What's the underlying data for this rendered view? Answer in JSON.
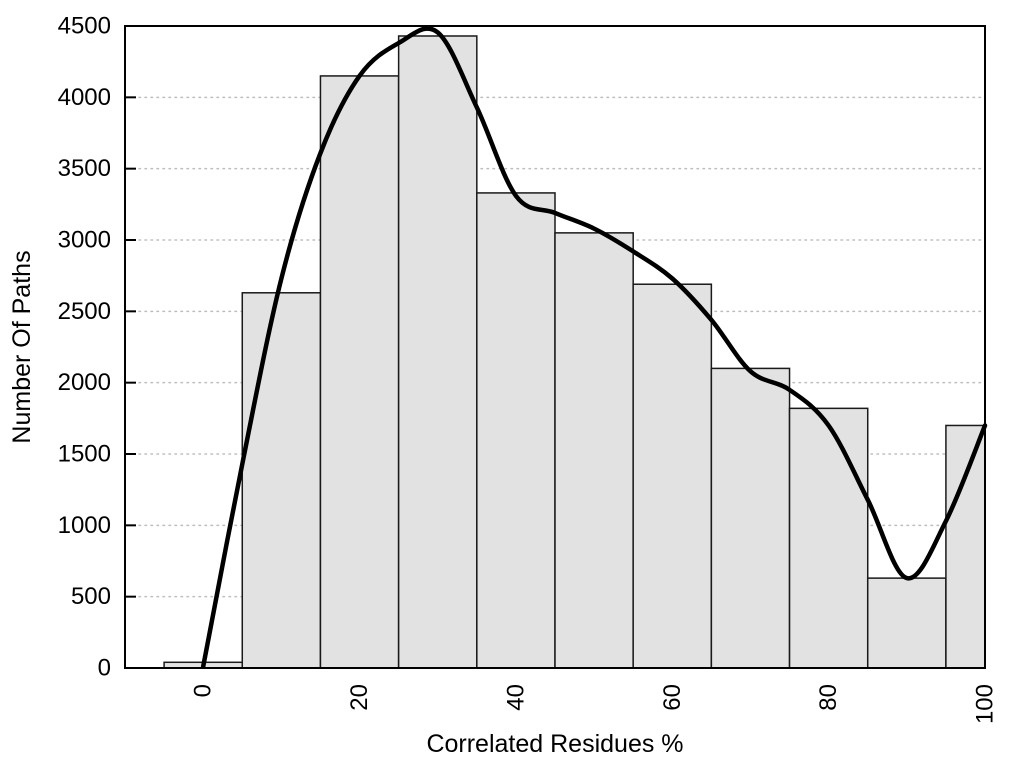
{
  "chart_data": {
    "type": "bar",
    "subtype": "histogram-with-smooth-curve",
    "title": "",
    "xlabel": "Correlated Residues %",
    "ylabel": "Number Of Paths",
    "xlim": [
      -10,
      100
    ],
    "ylim": [
      0,
      4500
    ],
    "x_tick_values": [
      0,
      20,
      40,
      60,
      80,
      100
    ],
    "x_tick_labels": [
      "0",
      "20",
      "40",
      "60",
      "80",
      "100"
    ],
    "x_tick_rotation_deg": -90,
    "y_tick_values": [
      0,
      500,
      1000,
      1500,
      2000,
      2500,
      3000,
      3500,
      4000,
      4500
    ],
    "y_tick_labels": [
      "0",
      "500",
      "1000",
      "1500",
      "2000",
      "2500",
      "3000",
      "3500",
      "4000",
      "4500"
    ],
    "grid": "horizontal-dotted",
    "legend_position": "none",
    "bins": [
      {
        "x0": -5,
        "x1": 5,
        "count": 40
      },
      {
        "x0": 5,
        "x1": 15,
        "count": 2630
      },
      {
        "x0": 15,
        "x1": 25,
        "count": 4150
      },
      {
        "x0": 25,
        "x1": 35,
        "count": 4430
      },
      {
        "x0": 35,
        "x1": 45,
        "count": 3330
      },
      {
        "x0": 45,
        "x1": 55,
        "count": 3050
      },
      {
        "x0": 55,
        "x1": 65,
        "count": 2690
      },
      {
        "x0": 65,
        "x1": 75,
        "count": 2100
      },
      {
        "x0": 75,
        "x1": 85,
        "count": 1820
      },
      {
        "x0": 85,
        "x1": 95,
        "count": 630
      },
      {
        "x0": 95,
        "x1": 100,
        "count": 1700
      }
    ],
    "smooth_curve_points": [
      [
        0,
        10
      ],
      [
        5,
        1430
      ],
      [
        10,
        2730
      ],
      [
        15,
        3610
      ],
      [
        20,
        4150
      ],
      [
        25,
        4380
      ],
      [
        30,
        4455
      ],
      [
        35,
        3930
      ],
      [
        40,
        3310
      ],
      [
        45,
        3190
      ],
      [
        50,
        3080
      ],
      [
        55,
        2920
      ],
      [
        60,
        2730
      ],
      [
        65,
        2440
      ],
      [
        70,
        2080
      ],
      [
        75,
        1950
      ],
      [
        80,
        1700
      ],
      [
        85,
        1180
      ],
      [
        90,
        630
      ],
      [
        95,
        1030
      ],
      [
        100,
        1700
      ]
    ],
    "colors": {
      "background": "#ffffff",
      "bar_fill": "#e2e2e2",
      "bar_border": "#1a1a1a",
      "curve": "#000000",
      "grid_line": "#bdbdbd",
      "axis": "#000000",
      "text": "#000000"
    }
  }
}
